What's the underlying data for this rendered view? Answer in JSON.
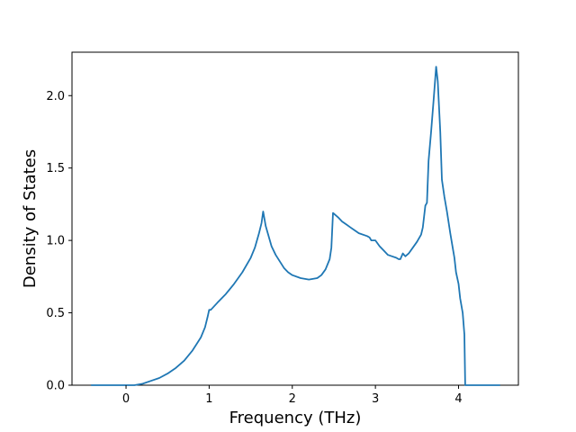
{
  "chart_data": {
    "type": "line",
    "xlabel": "Frequency (THz)",
    "ylabel": "Density of States",
    "xlim": [
      -0.65,
      4.72
    ],
    "ylim": [
      0.0,
      2.3
    ],
    "grid": false,
    "x_ticks": [
      0,
      1,
      2,
      3,
      4
    ],
    "y_ticks": [
      0.0,
      0.5,
      1.0,
      1.5,
      2.0
    ],
    "x_tick_labels": [
      "0",
      "1",
      "2",
      "3",
      "4"
    ],
    "y_tick_labels": [
      "0.0",
      "0.5",
      "1.0",
      "1.5",
      "2.0"
    ],
    "series": [
      {
        "color": "#1f77b4",
        "x": [
          -0.42,
          0.1,
          0.2,
          0.3,
          0.4,
          0.5,
          0.6,
          0.7,
          0.8,
          0.9,
          0.95,
          0.98,
          1.0,
          1.02,
          1.1,
          1.2,
          1.3,
          1.4,
          1.5,
          1.55,
          1.6,
          1.63,
          1.65,
          1.68,
          1.75,
          1.8,
          1.9,
          1.95,
          2.0,
          2.1,
          2.2,
          2.3,
          2.35,
          2.4,
          2.45,
          2.47,
          2.49,
          2.55,
          2.6,
          2.65,
          2.7,
          2.8,
          2.9,
          2.93,
          2.95,
          3.0,
          3.05,
          3.1,
          3.15,
          3.2,
          3.25,
          3.28,
          3.3,
          3.33,
          3.36,
          3.4,
          3.45,
          3.5,
          3.55,
          3.57,
          3.6,
          3.62,
          3.64,
          3.67,
          3.7,
          3.73,
          3.75,
          3.78,
          3.8,
          3.83,
          3.86,
          3.9,
          3.93,
          3.95,
          3.97,
          4.0,
          4.02,
          4.05,
          4.07,
          4.08,
          4.5
        ],
        "y": [
          0.0,
          0.0,
          0.01,
          0.03,
          0.05,
          0.08,
          0.12,
          0.17,
          0.24,
          0.33,
          0.4,
          0.47,
          0.52,
          0.52,
          0.57,
          0.63,
          0.7,
          0.78,
          0.88,
          0.95,
          1.05,
          1.12,
          1.2,
          1.1,
          0.96,
          0.9,
          0.81,
          0.78,
          0.76,
          0.74,
          0.73,
          0.74,
          0.76,
          0.8,
          0.87,
          0.95,
          1.19,
          1.16,
          1.13,
          1.11,
          1.09,
          1.05,
          1.03,
          1.02,
          1.0,
          1.0,
          0.96,
          0.93,
          0.9,
          0.89,
          0.88,
          0.87,
          0.87,
          0.91,
          0.89,
          0.91,
          0.95,
          0.99,
          1.04,
          1.09,
          1.24,
          1.26,
          1.55,
          1.75,
          1.97,
          2.2,
          2.1,
          1.75,
          1.42,
          1.3,
          1.2,
          1.05,
          0.95,
          0.88,
          0.78,
          0.7,
          0.6,
          0.5,
          0.35,
          0.0,
          0.0
        ]
      }
    ]
  }
}
